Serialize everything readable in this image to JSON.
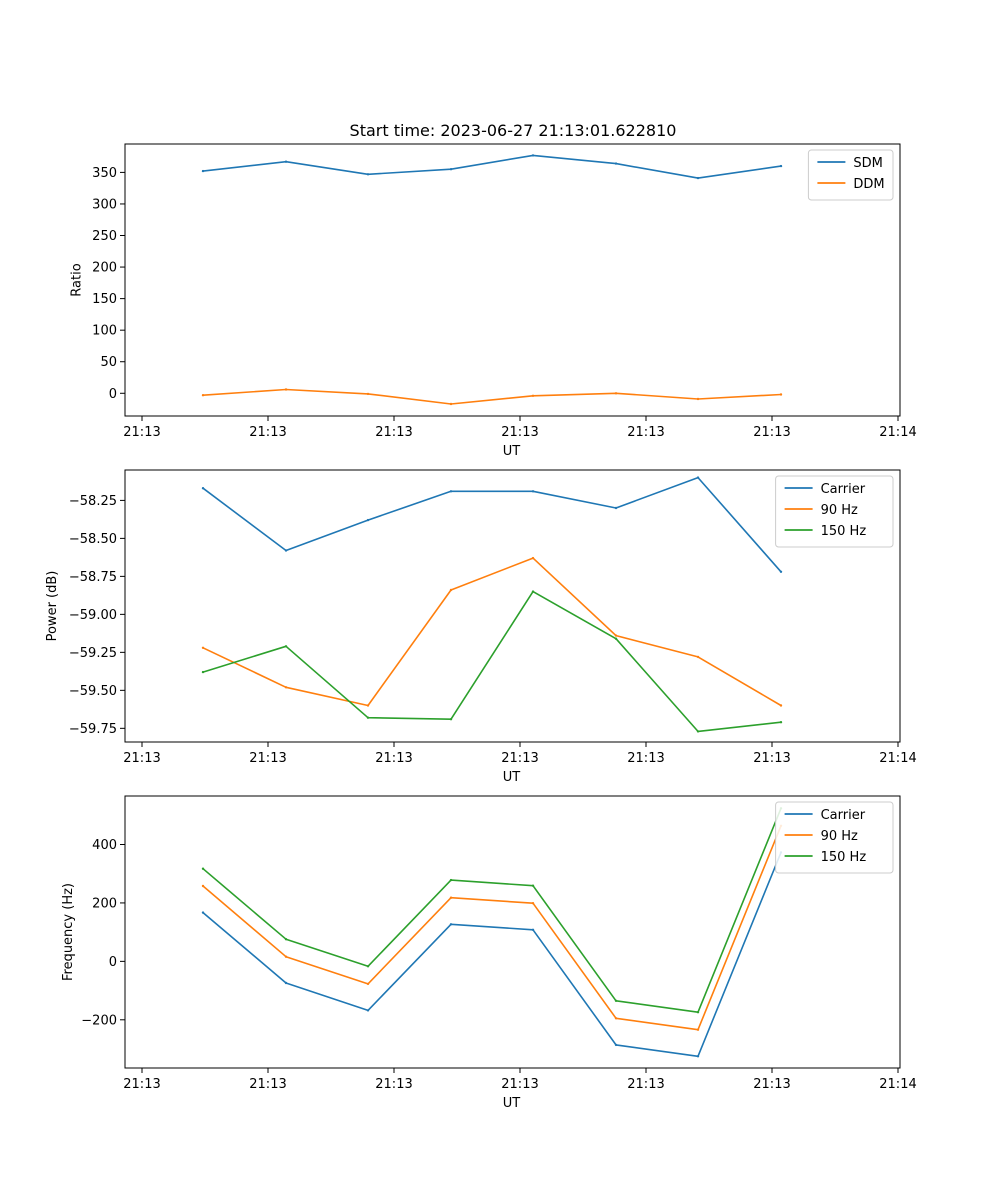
{
  "figure": {
    "title": "Start time: 2023-06-27 21:13:01.622810"
  },
  "chart_data": [
    {
      "type": "line",
      "title": "Start time: 2023-06-27 21:13:01.622810",
      "xlabel": "UT",
      "ylabel": "Ratio",
      "x_tick_labels": [
        "21:13",
        "21:13",
        "21:13",
        "21:13",
        "21:13",
        "21:13",
        "21:14"
      ],
      "y_ticks": [
        0,
        50,
        100,
        150,
        200,
        250,
        300,
        350
      ],
      "ylim": [
        -36,
        395
      ],
      "legend_position": "upper right",
      "grid": false,
      "series": [
        {
          "name": "SDM",
          "color": "#1f77b4",
          "values": [
            352,
            367,
            347,
            355,
            377,
            364,
            341,
            360
          ]
        },
        {
          "name": "DDM",
          "color": "#ff7f0e",
          "values": [
            -3,
            6,
            -1,
            -17,
            -4,
            0,
            -9,
            -2
          ]
        }
      ]
    },
    {
      "type": "line",
      "xlabel": "UT",
      "ylabel": "Power (dB)",
      "x_tick_labels": [
        "21:13",
        "21:13",
        "21:13",
        "21:13",
        "21:13",
        "21:13",
        "21:14"
      ],
      "y_ticks": [
        -59.75,
        -59.5,
        -59.25,
        -59.0,
        -58.75,
        -58.5,
        -58.25
      ],
      "y_tick_labels": [
        "−59.75",
        "−59.50",
        "−59.25",
        "−59.00",
        "−58.75",
        "−58.50",
        "−58.25"
      ],
      "ylim": [
        -59.84,
        -58.05
      ],
      "legend_position": "upper right",
      "grid": false,
      "series": [
        {
          "name": "Carrier",
          "color": "#1f77b4",
          "values": [
            -58.17,
            -58.58,
            -58.38,
            -58.19,
            -58.19,
            -58.3,
            -58.1,
            -58.72
          ]
        },
        {
          "name": "90 Hz",
          "color": "#ff7f0e",
          "values": [
            -59.22,
            -59.48,
            -59.6,
            -58.84,
            -58.63,
            -59.14,
            -59.28,
            -59.6
          ]
        },
        {
          "name": "150 Hz",
          "color": "#2ca02c",
          "values": [
            -59.38,
            -59.21,
            -59.68,
            -59.69,
            -58.85,
            -59.16,
            -59.77,
            -59.71
          ]
        }
      ]
    },
    {
      "type": "line",
      "xlabel": "UT",
      "ylabel": "Frequency (Hz)",
      "x_tick_labels": [
        "21:13",
        "21:13",
        "21:13",
        "21:13",
        "21:13",
        "21:13",
        "21:14"
      ],
      "y_ticks": [
        -200,
        0,
        200,
        400
      ],
      "y_tick_labels": [
        "−200",
        "0",
        "200",
        "400"
      ],
      "ylim": [
        -365,
        566
      ],
      "legend_position": "upper right",
      "grid": false,
      "series": [
        {
          "name": "Carrier",
          "color": "#1f77b4",
          "values": [
            167,
            -74,
            -168,
            127,
            108,
            -286,
            -325,
            373
          ]
        },
        {
          "name": "90 Hz",
          "color": "#ff7f0e",
          "values": [
            258,
            16,
            -77,
            218,
            199,
            -195,
            -234,
            464
          ]
        },
        {
          "name": "150 Hz",
          "color": "#2ca02c",
          "values": [
            317,
            76,
            -17,
            278,
            259,
            -135,
            -174,
            524
          ]
        }
      ]
    }
  ]
}
